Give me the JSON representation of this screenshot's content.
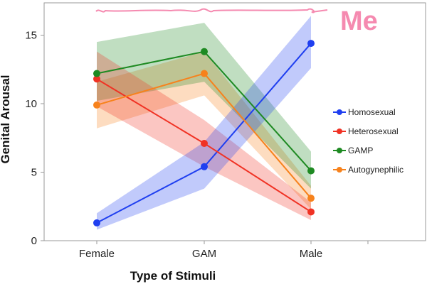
{
  "chart_data": {
    "type": "line",
    "xlabel": "Type of Stimuli",
    "ylabel": "Genital Arousal",
    "categories": [
      "Female",
      "GAM",
      "Male"
    ],
    "ylim": [
      0,
      17
    ],
    "yticks": [
      0,
      5,
      10,
      15
    ],
    "grid": false,
    "legend_position": "right",
    "series": [
      {
        "name": "Homosexual",
        "color": "#1f3ff0",
        "values": [
          1.3,
          5.4,
          14.4
        ],
        "lower": [
          0.8,
          3.8,
          12.6
        ],
        "upper": [
          2.0,
          7.2,
          16.4
        ]
      },
      {
        "name": "Heterosexual",
        "color": "#f03224",
        "values": [
          11.8,
          7.1,
          2.1
        ],
        "lower": [
          9.8,
          5.4,
          1.5
        ],
        "upper": [
          13.8,
          8.8,
          2.8
        ]
      },
      {
        "name": "GAMP",
        "color": "#1e8a22",
        "values": [
          12.2,
          13.8,
          5.1
        ],
        "lower": [
          10.2,
          11.6,
          3.8
        ],
        "upper": [
          14.5,
          15.9,
          6.5
        ]
      },
      {
        "name": "Autogynephilic",
        "color": "#f7821c",
        "values": [
          9.9,
          12.2,
          3.1
        ],
        "lower": [
          8.2,
          10.6,
          2.3
        ],
        "upper": [
          11.6,
          13.8,
          4.0
        ]
      }
    ],
    "annotation": {
      "text": "Me",
      "color": "#f58ab0"
    }
  }
}
